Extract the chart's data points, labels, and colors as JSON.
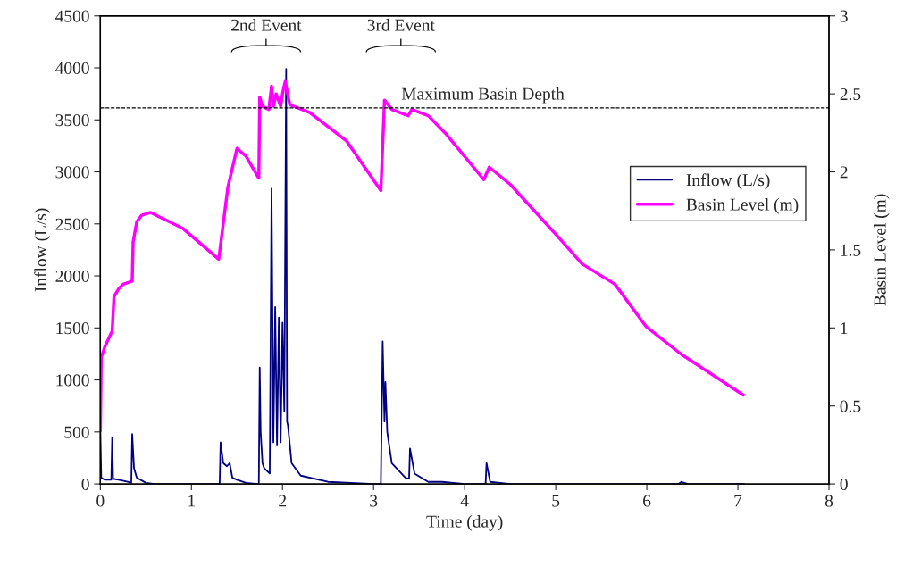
{
  "chart_data": {
    "type": "line",
    "xlabel": "Time (day)",
    "ylabel": "Inflow (L/s)",
    "y2label": "Basin Level (m)",
    "xlim": [
      0,
      8
    ],
    "xticks": [
      0,
      1,
      2,
      3,
      4,
      5,
      6,
      7,
      8
    ],
    "ylim": [
      0,
      4500
    ],
    "yticks": [
      0,
      500,
      1000,
      1500,
      2000,
      2500,
      3000,
      3500,
      4000,
      4500
    ],
    "y2lim": [
      0,
      3
    ],
    "y2ticks": [
      0,
      0.5,
      1,
      1.5,
      2,
      2.5,
      3
    ],
    "grid": false,
    "legend": "right",
    "marker": "none",
    "line_style": "solid",
    "series": [
      {
        "name": "Inflow (L/s)",
        "color": "#000080",
        "x": [
          0,
          0.01,
          0.05,
          0.12,
          0.13,
          0.14,
          0.2,
          0.3,
          0.34,
          0.35,
          0.37,
          0.4,
          0.5,
          0.6,
          1.3,
          1.31,
          1.32,
          1.35,
          1.39,
          1.42,
          1.45,
          1.5,
          1.6,
          1.73,
          1.74,
          1.75,
          1.76,
          1.78,
          1.8,
          1.86,
          1.88,
          1.9,
          1.92,
          1.94,
          1.96,
          1.98,
          2.0,
          2.02,
          2.04,
          2.05,
          2.06,
          2.1,
          2.2,
          2.5,
          3.0,
          3.08,
          3.1,
          3.12,
          3.13,
          3.15,
          3.2,
          3.35,
          3.39,
          3.4,
          3.45,
          3.6,
          3.75,
          4.0,
          4.23,
          4.24,
          4.28,
          4.5,
          6.35,
          6.38,
          6.45,
          7.07
        ],
        "values": [
          500,
          60,
          40,
          40,
          450,
          50,
          40,
          20,
          10,
          480,
          150,
          60,
          10,
          0,
          0,
          0,
          400,
          200,
          170,
          200,
          60,
          40,
          10,
          0,
          0,
          1120,
          500,
          200,
          150,
          100,
          2840,
          400,
          1700,
          370,
          1600,
          400,
          1550,
          700,
          3990,
          600,
          560,
          200,
          80,
          20,
          0,
          0,
          1370,
          600,
          980,
          500,
          200,
          60,
          50,
          340,
          100,
          20,
          20,
          0,
          0,
          200,
          20,
          0,
          0,
          20,
          0,
          0
        ]
      },
      {
        "name": "Basin Level (m)",
        "color": "#ff00ff",
        "axis": "y2",
        "x": [
          0,
          0.01,
          0.05,
          0.13,
          0.15,
          0.2,
          0.25,
          0.35,
          0.36,
          0.4,
          0.45,
          0.55,
          0.9,
          1.3,
          1.4,
          1.5,
          1.6,
          1.74,
          1.75,
          1.78,
          1.85,
          1.88,
          1.9,
          1.93,
          1.98,
          2.0,
          2.03,
          2.08,
          2.3,
          2.7,
          3.08,
          3.12,
          3.2,
          3.38,
          3.42,
          3.6,
          3.8,
          4.21,
          4.27,
          4.5,
          5.0,
          5.29,
          5.65,
          5.99,
          6.38,
          7.06
        ],
        "values": [
          0.34,
          0.81,
          0.88,
          0.98,
          1.2,
          1.25,
          1.28,
          1.3,
          1.55,
          1.68,
          1.72,
          1.74,
          1.64,
          1.44,
          1.9,
          2.15,
          2.1,
          1.96,
          2.48,
          2.42,
          2.4,
          2.55,
          2.42,
          2.5,
          2.42,
          2.5,
          2.58,
          2.43,
          2.38,
          2.2,
          1.88,
          2.46,
          2.4,
          2.36,
          2.4,
          2.36,
          2.24,
          1.95,
          2.03,
          1.92,
          1.6,
          1.41,
          1.28,
          1.01,
          0.83,
          0.57
        ]
      }
    ],
    "ref_lines": [
      {
        "axis": "y2",
        "value": 2.41,
        "label": "Maximum Basin Depth",
        "color": "#000000",
        "line_style": "dashed"
      }
    ],
    "annotations": [
      "2nd Event",
      "3rd Event"
    ]
  }
}
